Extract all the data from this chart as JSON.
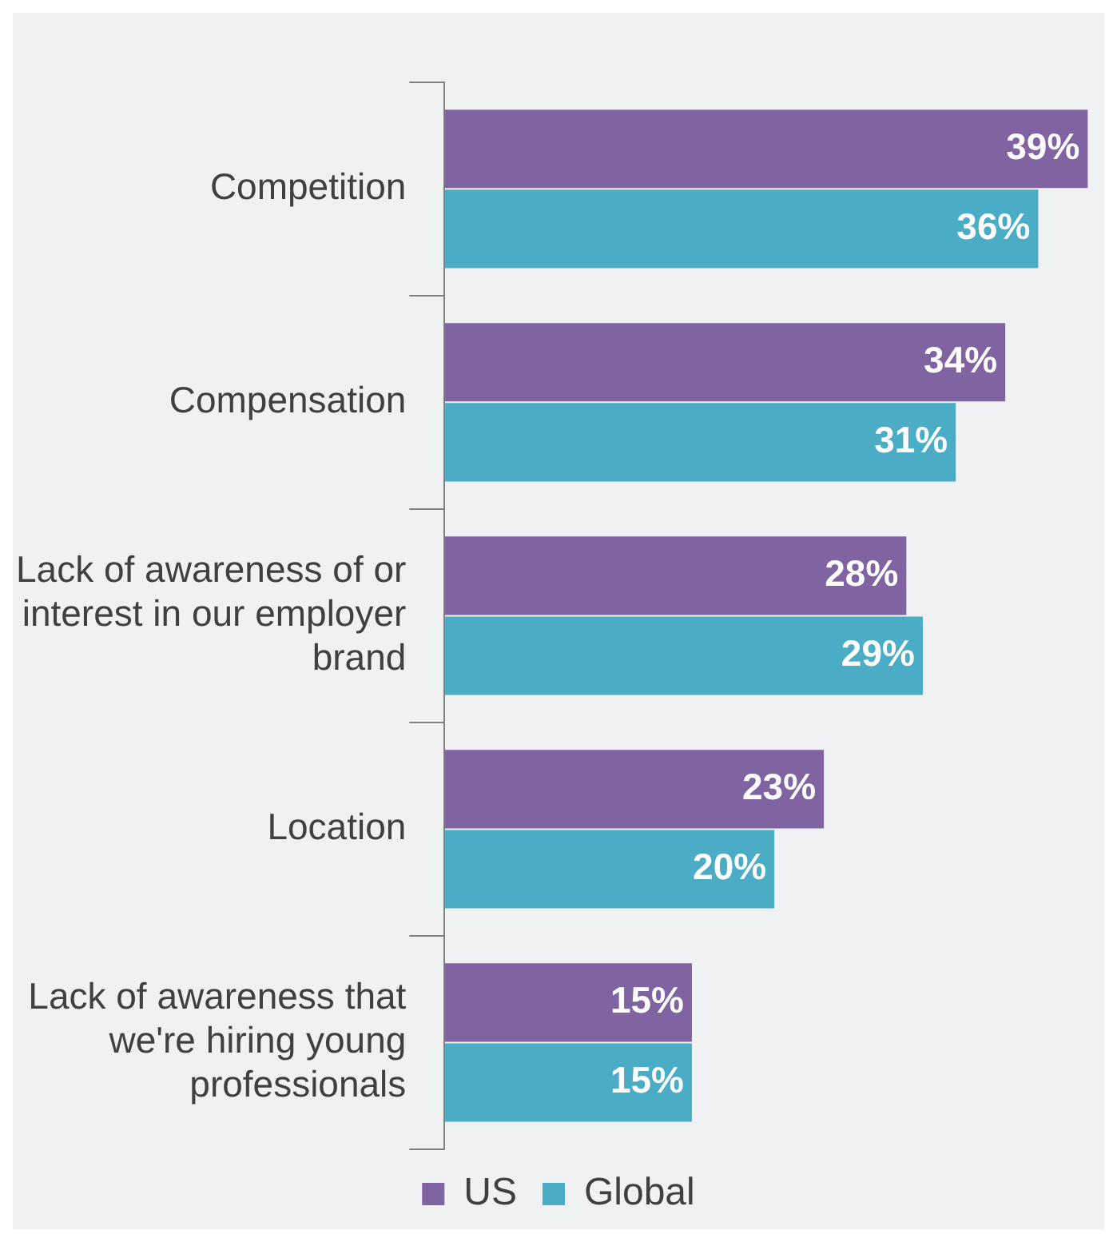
{
  "chart_data": {
    "type": "bar",
    "orientation": "horizontal",
    "categories": [
      "Competition",
      "Compensation",
      "Lack of awareness of or interest in our employer brand",
      "Location",
      "Lack of awareness that we're hiring young professionals"
    ],
    "series": [
      {
        "name": "US",
        "color": "#8064a2",
        "values": [
          39,
          34,
          28,
          23,
          15
        ],
        "value_labels": [
          "39%",
          "34%",
          "28%",
          "23%",
          "15%"
        ]
      },
      {
        "name": "Global",
        "color": "#4bacc6",
        "values": [
          36,
          31,
          29,
          20,
          15
        ],
        "value_labels": [
          "36%",
          "31%",
          "29%",
          "20%",
          "15%"
        ]
      }
    ],
    "tick_labels": "y",
    "legend": "bottom"
  }
}
